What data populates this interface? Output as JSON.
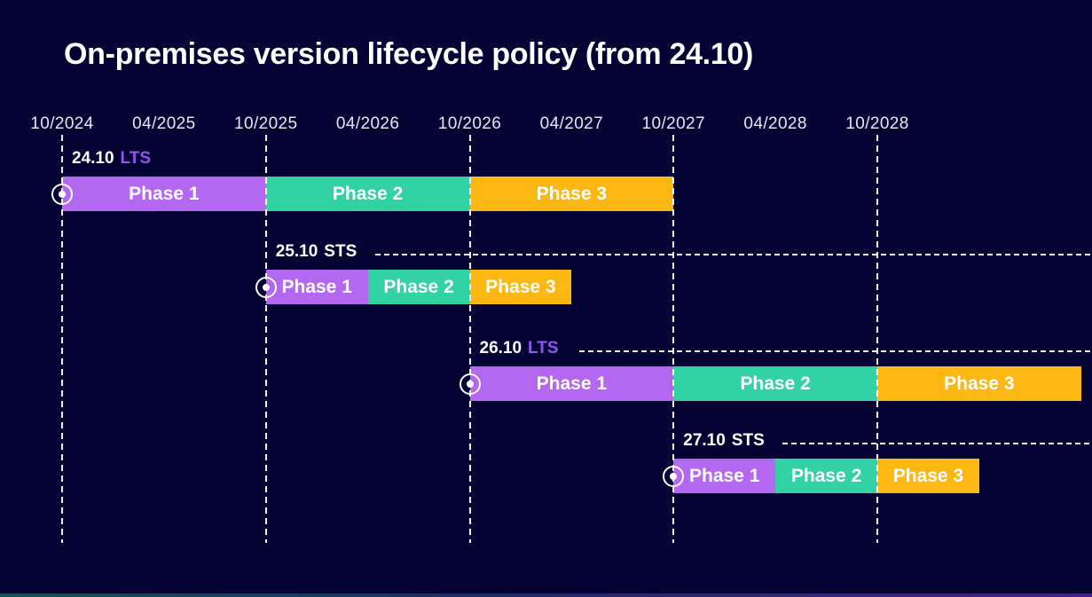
{
  "chart_data": {
    "type": "gantt",
    "title": "On-premises version lifecycle policy (from 24.10)",
    "x_axis": {
      "tick_labels": [
        "10/2024",
        "04/2025",
        "10/2025",
        "04/2026",
        "10/2026",
        "04/2027",
        "10/2027",
        "04/2028",
        "10/2028"
      ],
      "gridlines_at": [
        "10/2024",
        "10/2025",
        "10/2026",
        "10/2027",
        "10/2028"
      ]
    },
    "rows": [
      {
        "version": "24.10",
        "channel": "LTS",
        "release_date": "10/2024",
        "has_leader_line": false,
        "phases": [
          {
            "name": "Phase 1",
            "start": "10/2024",
            "end": "10/2025",
            "color_key": "phase1"
          },
          {
            "name": "Phase 2",
            "start": "10/2025",
            "end": "10/2026",
            "color_key": "phase2"
          },
          {
            "name": "Phase 3",
            "start": "10/2026",
            "end": "10/2027",
            "color_key": "phase3"
          }
        ]
      },
      {
        "version": "25.10",
        "channel": "STS",
        "release_date": "10/2025",
        "has_leader_line": true,
        "phases": [
          {
            "name": "Phase 1",
            "start": "10/2025",
            "end": "04/2026",
            "color_key": "phase1"
          },
          {
            "name": "Phase 2",
            "start": "04/2026",
            "end": "10/2026",
            "color_key": "phase2"
          },
          {
            "name": "Phase 3",
            "start": "10/2026",
            "end": "04/2027",
            "color_key": "phase3"
          }
        ]
      },
      {
        "version": "26.10",
        "channel": "LTS",
        "release_date": "10/2026",
        "has_leader_line": true,
        "phases": [
          {
            "name": "Phase 1",
            "start": "10/2026",
            "end": "10/2027",
            "color_key": "phase1"
          },
          {
            "name": "Phase 2",
            "start": "10/2027",
            "end": "10/2028",
            "color_key": "phase2"
          },
          {
            "name": "Phase 3",
            "start": "10/2028",
            "end": "10/2029",
            "color_key": "phase3"
          }
        ]
      },
      {
        "version": "27.10",
        "channel": "STS",
        "release_date": "10/2027",
        "has_leader_line": true,
        "phases": [
          {
            "name": "Phase 1",
            "start": "10/2027",
            "end": "04/2028",
            "color_key": "phase1"
          },
          {
            "name": "Phase 2",
            "start": "04/2028",
            "end": "10/2028",
            "color_key": "phase2"
          },
          {
            "name": "Phase 3",
            "start": "10/2028",
            "end": "04/2029",
            "color_key": "phase3"
          }
        ]
      }
    ]
  },
  "colors": {
    "background": "#050333",
    "phase1": "#b468f2",
    "phase2": "#33d2a4",
    "phase3": "#fdb712",
    "lts_accent": "#9257f0",
    "sts_accent": "#ffffff",
    "axis_text": "#e8e6f3",
    "grid_line": "#ffffff",
    "footer_gradient": [
      "#11554f",
      "#1c2d68",
      "#4a1d8e"
    ]
  },
  "icons": {
    "release_marker": "circled-dot"
  }
}
